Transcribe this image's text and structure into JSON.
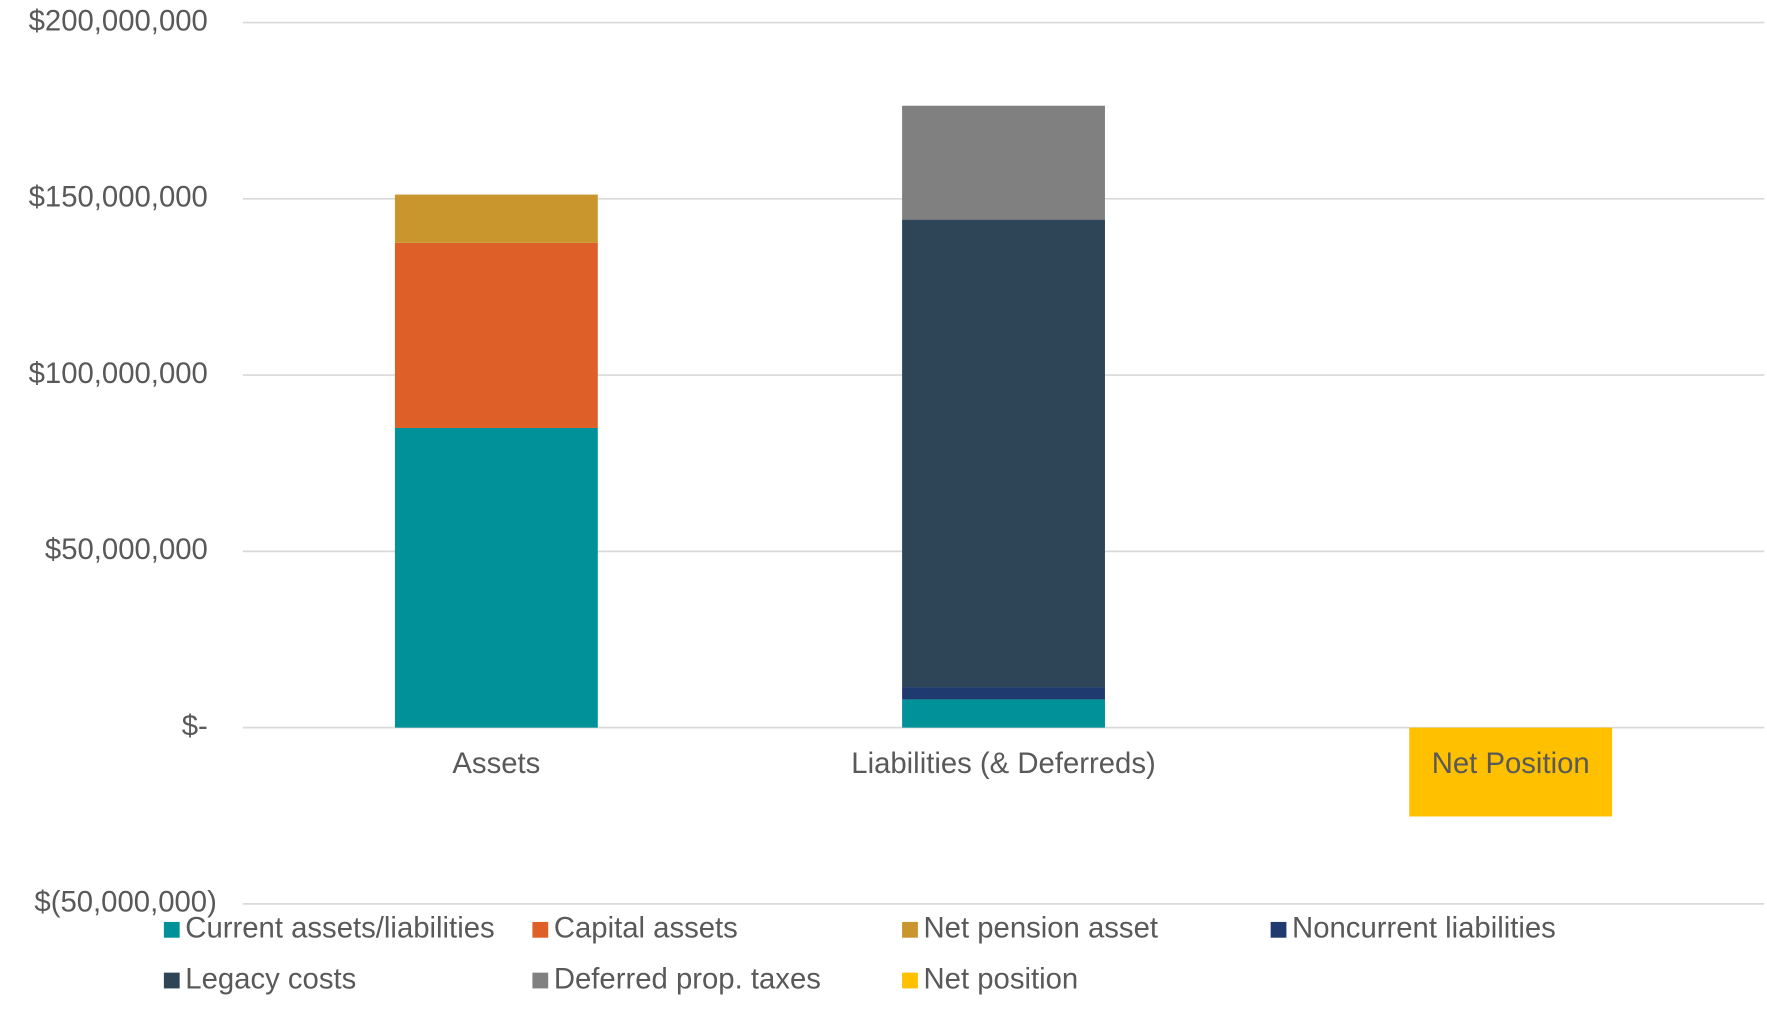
{
  "chart_data": {
    "type": "stacked_bar",
    "categories": [
      "Assets",
      "Liabilities (& Deferreds)",
      "Net Position"
    ],
    "series": [
      {
        "name": "Current assets/liabilities",
        "color": "#009298",
        "values": [
          85000000,
          8000000,
          null
        ]
      },
      {
        "name": "Capital assets",
        "color": "#de5f27",
        "values": [
          52500000,
          null,
          null
        ]
      },
      {
        "name": "Net pension asset",
        "color": "#c9952d",
        "values": [
          13700000,
          null,
          null
        ]
      },
      {
        "name": "Noncurrent liabilities",
        "color": "#1f3a6e",
        "values": [
          null,
          3500000,
          null
        ]
      },
      {
        "name": "Legacy costs",
        "color": "#2e4558",
        "values": [
          null,
          132600000,
          null
        ]
      },
      {
        "name": "Deferred prop. taxes",
        "color": "#808080",
        "values": [
          null,
          32300000,
          null
        ]
      },
      {
        "name": "Net position",
        "color": "#ffc000",
        "values": [
          null,
          null,
          -25200000
        ]
      }
    ],
    "ylim": [
      -50000000,
      200000000
    ],
    "yticks": [
      {
        "value": -50000000,
        "label": "$(50,000,000)"
      },
      {
        "value": 0,
        "label": "$-"
      },
      {
        "value": 50000000,
        "label": "$50,000,000"
      },
      {
        "value": 100000000,
        "label": "$100,000,000"
      },
      {
        "value": 150000000,
        "label": "$150,000,000"
      },
      {
        "value": 200000000,
        "label": "$200,000,000"
      }
    ],
    "grid": true,
    "legend": "bottom"
  }
}
